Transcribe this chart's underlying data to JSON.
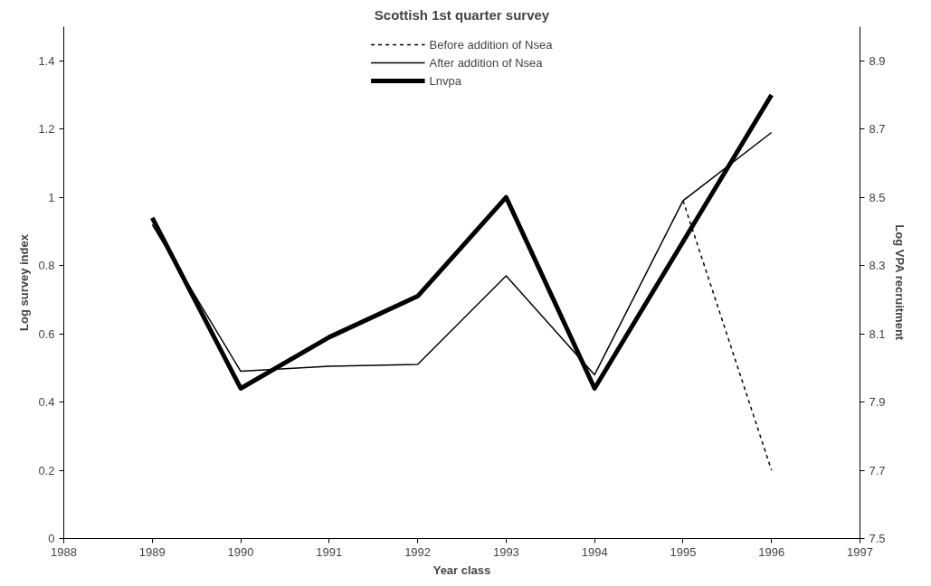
{
  "chart_data": {
    "type": "line",
    "title": "Scottish 1st quarter survey",
    "xlabel": "Year class",
    "ylabel": "Log survey index",
    "y2label": "Log VPA recruitment",
    "x": [
      1989,
      1990,
      1991,
      1992,
      1993,
      1994,
      1995,
      1996
    ],
    "series": [
      {
        "name": "Before addition of Nsea",
        "color": "#000000",
        "line_style": "dotted",
        "values": [
          null,
          null,
          null,
          null,
          null,
          null,
          0.99,
          0.2
        ]
      },
      {
        "name": "After addition of Nsea",
        "color": "#000000",
        "line_style": "solid",
        "values": [
          0.92,
          0.49,
          0.505,
          0.51,
          0.77,
          0.48,
          0.99,
          1.19
        ]
      },
      {
        "name": "Lnvpa",
        "color": "#000000",
        "line_style": "solid",
        "axis": "y2",
        "values": [
          8.44,
          7.94,
          8.09,
          8.21,
          8.5,
          7.94,
          8.37,
          8.8
        ]
      }
    ],
    "xlim": [
      1988,
      1997
    ],
    "xticks": [
      1988,
      1989,
      1990,
      1991,
      1992,
      1993,
      1994,
      1995,
      1996,
      1997
    ],
    "ylim": [
      0,
      1.5
    ],
    "yticks": [
      0,
      0.2,
      0.4,
      0.6,
      0.8,
      1,
      1.2,
      1.4
    ],
    "y2lim": [
      7.5,
      9.0
    ],
    "y2ticks": [
      7.5,
      7.7,
      7.9,
      8.1,
      8.3,
      8.5,
      8.7,
      8.9
    ],
    "grid": false,
    "legend": "top",
    "marker": "none"
  }
}
